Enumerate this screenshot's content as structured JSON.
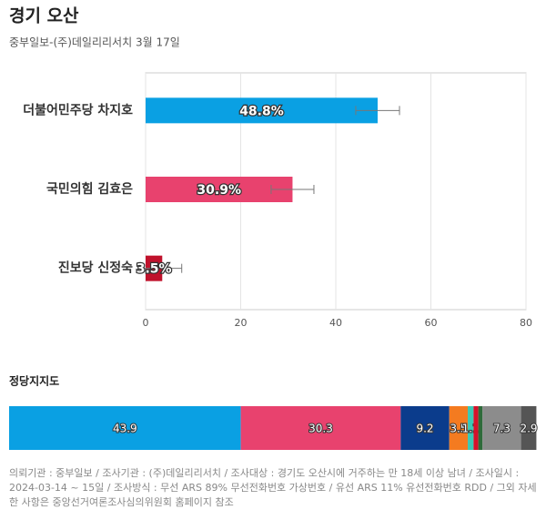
{
  "chart_data": [
    {
      "type": "hbar",
      "title": "경기 오산",
      "subtitle": "중부일보-(주)데일리리서치 3월 17일",
      "categories": [
        "더불어민주당 차지호",
        "국민의힘 김효은",
        "진보당 신정숙"
      ],
      "values": [
        48.8,
        30.9,
        3.5
      ],
      "value_labels": [
        "48.8%",
        "30.9%",
        "3.5%"
      ],
      "errors": [
        4.6,
        4.5,
        4.1
      ],
      "colors": [
        "#0aa0e3",
        "#e8426e",
        "#c0122c"
      ],
      "xlim": [
        0,
        80
      ],
      "xticks": [
        0,
        20,
        40,
        60,
        80
      ],
      "grid": true
    },
    {
      "type": "stacked",
      "title": "정당지지도",
      "values": [
        43.9,
        30.3,
        9.2,
        3.5,
        1.1,
        0.9,
        0.8,
        7.3,
        2.9
      ],
      "colors": [
        "#0aa0e3",
        "#e8426e",
        "#0b3c8c",
        "#f47b20",
        "#3cc8b4",
        "#d6112b",
        "#2e6b3a",
        "#8c8c8c",
        "#555555"
      ],
      "xlim": [
        0,
        100
      ]
    }
  ],
  "footnote": "의뢰기관 : 중부일보 / 조사기관 : (주)데일리리서치 / 조사대상 : 경기도 오산시에 거주하는 만 18세 이상 남녀 / 조사일시 : 2024-03-14 ~ 15일 / 조사방식 : 무선 ARS 89% 무선전화번호 가상번호 / 유선 ARS 11% 유선전화번호 RDD / 그외 자세한 사항은 중앙선거여론조사심의위원회 홈페이지 참조"
}
